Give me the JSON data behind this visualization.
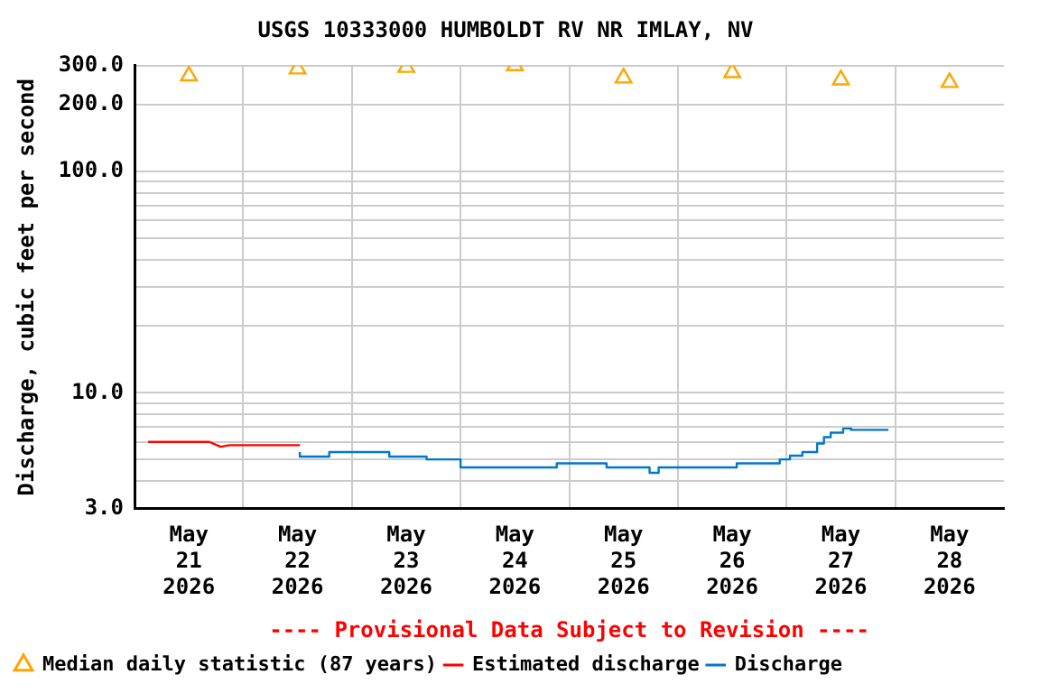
{
  "chart_data": {
    "type": "step",
    "title": "USGS 10333000 HUMBOLDT RV NR IMLAY, NV",
    "ylabel": "Discharge, cubic feet per second",
    "annotations": [
      "---- Provisional Data Subject to Revision ----"
    ],
    "log": true,
    "grid": true,
    "legend": "bottom",
    "xlim": [
      "2026-05-21T00:00",
      "2026-05-29T00:00"
    ],
    "xticks": [
      {
        "value": "2026-05-21T12:00",
        "label": "May\n21\n2026"
      },
      {
        "value": "2026-05-22T00:00",
        "label": null
      },
      {
        "value": "2026-05-22T12:00",
        "label": "May\n22\n2026"
      },
      {
        "value": "2026-05-23T00:00",
        "label": null
      },
      {
        "value": "2026-05-23T12:00",
        "label": "May\n23\n2026"
      },
      {
        "value": "2026-05-24T00:00",
        "label": null
      },
      {
        "value": "2026-05-24T12:00",
        "label": "May\n24\n2026"
      },
      {
        "value": "2026-05-25T00:00",
        "label": null
      },
      {
        "value": "2026-05-25T12:00",
        "label": "May\n25\n2026"
      },
      {
        "value": "2026-05-26T00:00",
        "label": null
      },
      {
        "value": "2026-05-26T12:00",
        "label": "May\n26\n2026"
      },
      {
        "value": "2026-05-27T00:00",
        "label": null
      },
      {
        "value": "2026-05-27T12:00",
        "label": "May\n27\n2026"
      },
      {
        "value": "2026-05-28T00:00",
        "label": null
      },
      {
        "value": "2026-05-28T12:00",
        "label": "May\n28\n2026"
      }
    ],
    "ylim": [
      3,
      300
    ],
    "yticks": [
      {
        "value": 3,
        "label": "3.0"
      },
      {
        "value": 4,
        "label": null
      },
      {
        "value": 5,
        "label": null
      },
      {
        "value": 6,
        "label": null
      },
      {
        "value": 7,
        "label": null
      },
      {
        "value": 8,
        "label": null
      },
      {
        "value": 9,
        "label": null
      },
      {
        "value": 10,
        "label": "10.0"
      },
      {
        "value": 20,
        "label": null
      },
      {
        "value": 30,
        "label": null
      },
      {
        "value": 40,
        "label": null
      },
      {
        "value": 50,
        "label": null
      },
      {
        "value": 60,
        "label": null
      },
      {
        "value": 70,
        "label": null
      },
      {
        "value": 80,
        "label": null
      },
      {
        "value": 90,
        "label": null
      },
      {
        "value": 100,
        "label": "100.0"
      },
      {
        "value": 200,
        "label": "200.0"
      },
      {
        "value": 300,
        "label": "300.0"
      }
    ],
    "series": [
      {
        "name": "Median daily statistic (87 years)",
        "type": "scatter",
        "marker": "triangle",
        "color": "#ffa500",
        "x": [
          "2026-05-21T12:00",
          "2026-05-22T12:00",
          "2026-05-23T12:00",
          "2026-05-24T12:00",
          "2026-05-25T12:00",
          "2026-05-26T12:00",
          "2026-05-27T12:00",
          "2026-05-28T12:00"
        ],
        "values": [
          270,
          290,
          295,
          300,
          264,
          279,
          259,
          252
        ]
      },
      {
        "name": "Estimated discharge",
        "type": "line",
        "color": "#ff0000",
        "x": [
          "2026-05-21T03:00",
          "2026-05-21T16:30",
          "2026-05-21T19:00",
          "2026-05-21T21:00",
          "2026-05-22T12:30"
        ],
        "values": [
          6.0,
          6.0,
          5.7,
          5.8,
          5.8
        ]
      },
      {
        "name": "Discharge",
        "color": "#0077cc",
        "x": [
          "2026-05-22T12:30",
          "2026-05-22T19:00",
          "2026-05-23T08:15",
          "2026-05-23T16:30",
          "2026-05-24T00:00",
          "2026-05-24T21:15",
          "2026-05-25T08:15",
          "2026-05-25T17:45",
          "2026-05-25T19:45",
          "2026-05-26T13:00",
          "2026-05-26T22:30",
          "2026-05-27T00:45",
          "2026-05-27T03:30",
          "2026-05-27T06:45",
          "2026-05-27T08:15",
          "2026-05-27T09:45",
          "2026-05-27T12:30",
          "2026-05-27T14:15",
          "2026-05-27T19:15",
          "2026-05-27T22:30"
        ],
        "values": [
          5.4,
          5.15,
          5.4,
          5.15,
          5.0,
          4.6,
          4.8,
          4.6,
          4.35,
          4.6,
          4.8,
          5.0,
          5.2,
          5.4,
          5.9,
          6.3,
          6.6,
          6.9,
          6.8,
          6.8
        ]
      }
    ]
  }
}
